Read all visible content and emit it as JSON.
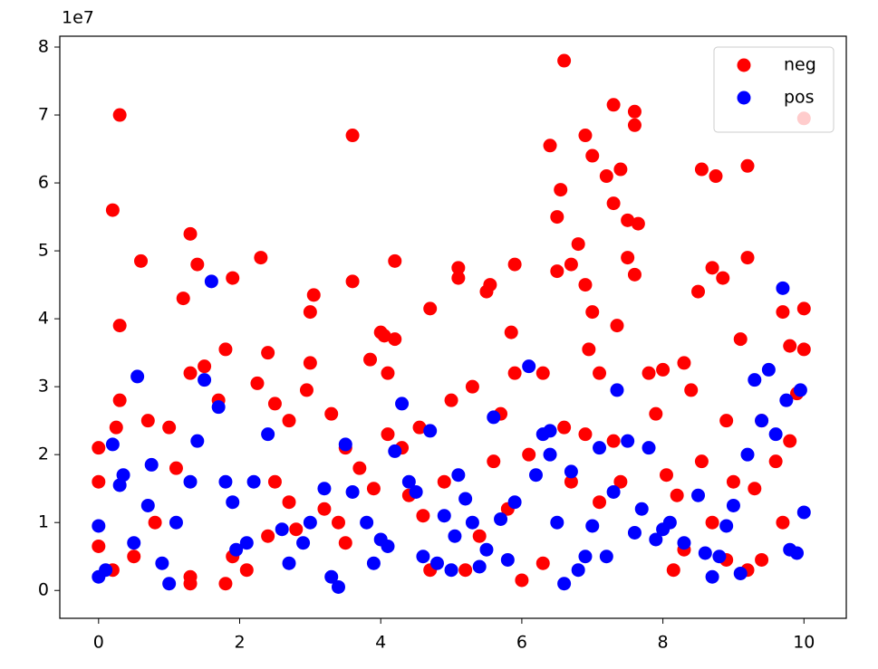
{
  "chart_data": {
    "type": "scatter",
    "y_offset_label": "1e7",
    "xlim": [
      -0.55,
      10.6
    ],
    "ylim": [
      -0.41,
      8.16
    ],
    "xticks": [
      0,
      2,
      4,
      6,
      8,
      10
    ],
    "yticks": [
      0,
      1,
      2,
      3,
      4,
      5,
      6,
      7,
      8
    ],
    "legend": "upper right",
    "series": [
      {
        "name": "neg",
        "color": "#ff0000",
        "x": [
          0.3,
          0.2,
          0.3,
          0.6,
          1.3,
          1.4,
          1.2,
          1.9,
          2.3,
          3.6,
          3.6,
          4.2,
          3.05,
          3.0,
          4.7,
          5.1,
          5.1,
          5.9,
          5.85,
          6.6,
          6.4,
          6.9,
          7.3,
          7.6,
          7.6,
          7.4,
          7.2,
          7.0,
          6.5,
          6.55,
          6.8,
          7.3,
          7.5,
          7.5,
          7.65,
          6.5,
          6.7,
          6.9,
          7.0,
          6.95,
          7.1,
          7.35,
          7.6,
          8.55,
          8.75,
          9.2,
          9.2,
          10.0,
          10.0,
          8.7,
          8.85,
          8.5,
          9.1,
          9.7,
          9.8,
          10.0,
          8.0,
          8.3,
          8.4,
          9.4,
          7.8,
          6.3,
          5.9,
          5.5,
          5.55,
          4.0,
          4.05,
          4.2,
          3.85,
          4.1,
          3.0,
          2.95,
          1.7,
          1.5,
          1.3,
          0.3,
          0.7,
          0.25,
          0.0,
          0.0,
          0.0,
          0.2,
          0.5,
          0.8,
          1.0,
          1.1,
          1.3,
          1.3,
          1.8,
          1.9,
          2.1,
          2.4,
          2.5,
          2.7,
          2.8,
          3.2,
          3.4,
          3.5,
          3.7,
          3.9,
          4.1,
          4.3,
          4.4,
          4.6,
          4.7,
          4.9,
          5.0,
          5.2,
          5.4,
          5.6,
          5.8,
          6.0,
          6.1,
          6.3,
          6.6,
          6.7,
          6.9,
          7.1,
          7.3,
          7.4,
          7.9,
          8.05,
          8.15,
          8.2,
          8.3,
          8.55,
          8.7,
          8.9,
          9.0,
          9.2,
          9.3,
          9.4,
          9.6,
          9.8,
          9.9,
          9.7,
          8.9,
          2.25,
          2.5,
          2.7,
          3.3,
          3.5,
          5.3,
          5.7,
          4.55,
          1.8,
          2.4
        ],
        "values": [
          7.0,
          5.6,
          3.9,
          4.85,
          5.25,
          4.8,
          4.3,
          4.6,
          4.9,
          6.7,
          4.55,
          4.85,
          4.35,
          4.1,
          4.15,
          4.75,
          4.6,
          4.8,
          3.8,
          7.8,
          6.55,
          6.7,
          7.15,
          7.05,
          6.85,
          6.2,
          6.1,
          6.4,
          5.5,
          5.9,
          5.1,
          5.7,
          5.45,
          4.9,
          5.4,
          4.7,
          4.8,
          4.5,
          4.1,
          3.55,
          3.2,
          3.9,
          4.65,
          6.2,
          6.1,
          6.25,
          4.9,
          6.95,
          4.15,
          4.75,
          4.6,
          4.4,
          3.7,
          4.1,
          3.6,
          3.55,
          3.25,
          3.35,
          2.95,
          2.5,
          3.2,
          3.2,
          3.2,
          4.4,
          4.5,
          3.8,
          3.75,
          3.7,
          3.4,
          3.2,
          3.35,
          2.95,
          2.8,
          3.3,
          3.2,
          2.8,
          2.5,
          2.4,
          2.1,
          1.6,
          0.65,
          0.3,
          0.5,
          1.0,
          2.4,
          1.8,
          0.2,
          0.1,
          0.1,
          0.5,
          0.3,
          0.8,
          1.6,
          1.3,
          0.9,
          1.2,
          1.0,
          0.7,
          1.8,
          1.5,
          2.3,
          2.1,
          1.4,
          1.1,
          0.3,
          1.6,
          2.8,
          0.3,
          0.8,
          1.9,
          1.2,
          0.15,
          2.0,
          0.4,
          2.4,
          1.6,
          2.3,
          1.3,
          2.2,
          1.6,
          2.6,
          1.7,
          0.3,
          1.4,
          0.6,
          1.9,
          1.0,
          0.45,
          1.6,
          0.3,
          1.5,
          0.45,
          1.9,
          2.2,
          2.9,
          1.0,
          2.5,
          3.05,
          2.75,
          2.5,
          2.6,
          2.1,
          3.0,
          2.6,
          2.4,
          3.55,
          3.5
        ]
      },
      {
        "name": "pos",
        "color": "#0000ff",
        "x": [
          0.0,
          0.1,
          0.0,
          0.2,
          0.3,
          0.35,
          0.5,
          0.55,
          0.7,
          0.75,
          0.9,
          1.0,
          1.1,
          1.3,
          1.4,
          1.5,
          1.6,
          1.7,
          1.8,
          1.9,
          1.95,
          2.1,
          2.2,
          2.4,
          2.6,
          2.7,
          2.9,
          3.0,
          3.2,
          3.3,
          3.4,
          3.5,
          3.6,
          3.8,
          3.9,
          4.0,
          4.1,
          4.2,
          4.3,
          4.4,
          4.5,
          4.6,
          4.7,
          4.8,
          4.9,
          5.0,
          5.1,
          5.2,
          5.3,
          5.4,
          5.5,
          5.6,
          5.7,
          5.8,
          5.9,
          6.1,
          6.2,
          6.3,
          6.4,
          6.5,
          6.6,
          6.7,
          6.8,
          6.9,
          7.0,
          7.1,
          7.2,
          7.3,
          7.35,
          7.5,
          7.6,
          7.7,
          7.8,
          7.9,
          8.0,
          8.1,
          8.3,
          8.5,
          8.6,
          8.7,
          8.8,
          8.9,
          9.0,
          9.1,
          9.2,
          9.3,
          9.4,
          9.5,
          9.6,
          9.7,
          9.75,
          9.8,
          9.9,
          9.95,
          10.0,
          6.4,
          5.05
        ],
        "values": [
          0.2,
          0.3,
          0.95,
          2.15,
          1.55,
          1.7,
          0.7,
          3.15,
          1.25,
          1.85,
          0.4,
          0.1,
          1.0,
          1.6,
          2.2,
          3.1,
          4.55,
          2.7,
          1.6,
          1.3,
          0.6,
          0.7,
          1.6,
          2.3,
          0.9,
          0.4,
          0.7,
          1.0,
          1.5,
          0.2,
          0.05,
          2.15,
          1.45,
          1.0,
          0.4,
          0.75,
          0.65,
          2.05,
          2.75,
          1.6,
          1.45,
          0.5,
          2.35,
          0.4,
          1.1,
          0.3,
          1.7,
          1.35,
          1.0,
          0.35,
          0.6,
          2.55,
          1.05,
          0.45,
          1.3,
          3.3,
          1.7,
          2.3,
          2.0,
          1.0,
          0.1,
          1.75,
          0.3,
          0.5,
          0.95,
          2.1,
          0.5,
          1.45,
          2.95,
          2.2,
          0.85,
          1.2,
          2.1,
          0.75,
          0.9,
          1.0,
          0.7,
          1.4,
          0.55,
          0.2,
          0.5,
          0.95,
          1.25,
          0.25,
          2.0,
          3.1,
          2.5,
          3.25,
          2.3,
          4.45,
          2.8,
          0.6,
          0.55,
          2.95,
          1.15,
          2.35,
          0.8
        ]
      }
    ]
  }
}
